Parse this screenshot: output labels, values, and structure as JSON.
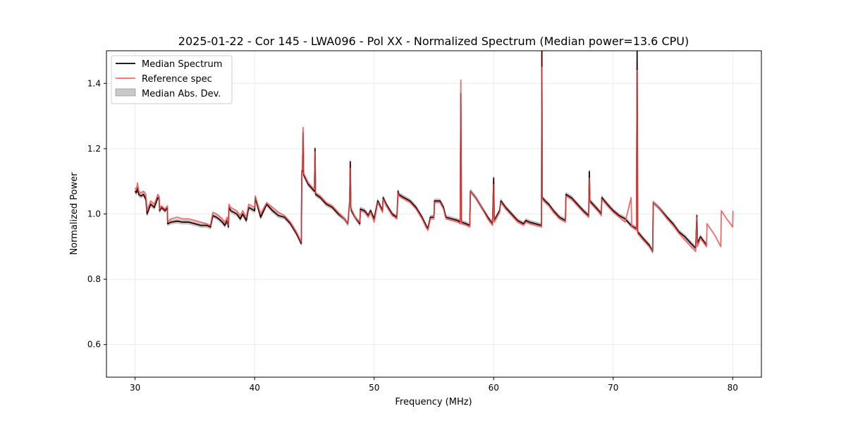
{
  "chart_data": {
    "type": "line",
    "title": "2025-01-22 - Cor 145 - LWA096 - Pol XX - Normalized Spectrum (Median power=13.6 CPU)",
    "xlabel": "Frequency (MHz)",
    "ylabel": "Normalized Power",
    "xlim": [
      27.6,
      82.4
    ],
    "ylim": [
      0.5,
      1.5
    ],
    "xticks": [
      30,
      40,
      50,
      60,
      70,
      80
    ],
    "yticks": [
      0.6,
      0.8,
      1.0,
      1.2,
      1.4
    ],
    "xtick_labels": [
      "30",
      "40",
      "50",
      "60",
      "70",
      "80"
    ],
    "ytick_labels": [
      "0.6",
      "0.8",
      "1.0",
      "1.2",
      "1.4"
    ],
    "grid": true,
    "legend_position": "top-left",
    "legend": [
      {
        "label": "Median Spectrum",
        "kind": "line",
        "color": "#000000"
      },
      {
        "label": "Reference spec",
        "kind": "line",
        "color": "#f26a6a"
      },
      {
        "label": "Median Abs. Dev.",
        "kind": "patch",
        "color": "#c8c8c8"
      }
    ],
    "series": [
      {
        "name": "Median Spectrum",
        "color": "#000000",
        "x": [
          30,
          30.1,
          30.2,
          30.3,
          30.5,
          30.7,
          30.9,
          31.0,
          31.3,
          31.6,
          31.9,
          32.0,
          32.05,
          32.2,
          32.5,
          32.7,
          32.72,
          33.0,
          33.5,
          34.0,
          34.5,
          35.0,
          35.5,
          36.0,
          36.3,
          36.5,
          36.8,
          37.0,
          37.3,
          37.5,
          37.7,
          37.8,
          37.85,
          38.0,
          38.5,
          38.8,
          39.0,
          39.3,
          39.5,
          40.0,
          40.05,
          40.5,
          41.0,
          41.5,
          42.0,
          42.5,
          43.0,
          43.5,
          43.9,
          43.95,
          44.0,
          44.05,
          44.1,
          44.5,
          45.0,
          45.05,
          45.1,
          45.5,
          46.0,
          46.5,
          47.0,
          47.5,
          47.8,
          47.95,
          48.0,
          48.05,
          48.1,
          48.4,
          48.8,
          48.85,
          49.2,
          49.5,
          49.7,
          50.0,
          50.3,
          50.7,
          50.75,
          51.0,
          51.5,
          51.9,
          52.0,
          52.05,
          52.5,
          53.0,
          53.5,
          54.0,
          54.4,
          54.5,
          54.7,
          55.0,
          55.05,
          55.5,
          55.8,
          56.0,
          56.5,
          57.0,
          57.2,
          57.25,
          57.3,
          57.7,
          58.0,
          58.05,
          58.5,
          59.0,
          59.5,
          59.9,
          60.0,
          60.05,
          60.5,
          60.6,
          61.0,
          61.5,
          62.0,
          62.5,
          62.7,
          63.0,
          63.5,
          64.0,
          64.03,
          64.06,
          64.3,
          64.6,
          65.0,
          65.5,
          66.0,
          66.05,
          66.5,
          67.0,
          67.5,
          67.95,
          68.0,
          68.05,
          68.3,
          68.8,
          69.0,
          69.05,
          69.5,
          70.0,
          70.5,
          71.0,
          71.5,
          71.95,
          72.0,
          72.05,
          72.5,
          73.0,
          73.3,
          73.35,
          73.8,
          74.5,
          75.0,
          75.5,
          76.0,
          76.5,
          76.9,
          77.0,
          77.05,
          77.3,
          77.8
        ],
        "y": [
          1.07,
          1.065,
          1.08,
          1.06,
          1.055,
          1.06,
          1.045,
          1.0,
          1.03,
          1.02,
          1.05,
          1.05,
          1.01,
          1.02,
          1.01,
          1.02,
          0.97,
          0.975,
          0.978,
          0.975,
          0.975,
          0.97,
          0.965,
          0.965,
          0.96,
          0.995,
          0.99,
          0.985,
          0.975,
          0.965,
          0.98,
          0.96,
          1.02,
          1.01,
          1.0,
          0.985,
          1.0,
          0.98,
          1.02,
          1.01,
          1.05,
          0.99,
          1.03,
          1.01,
          0.995,
          0.99,
          0.97,
          0.94,
          0.91,
          1.13,
          1.13,
          1.25,
          1.12,
          1.09,
          1.07,
          1.2,
          1.06,
          1.05,
          1.03,
          1.02,
          1.0,
          0.985,
          0.97,
          1.04,
          1.16,
          1.02,
          1.01,
          0.99,
          0.97,
          1.015,
          1.01,
          0.995,
          1.01,
          0.985,
          1.04,
          1.01,
          1.05,
          1.03,
          1.0,
          0.99,
          1.07,
          1.06,
          1.05,
          1.04,
          1.02,
          0.99,
          0.96,
          0.955,
          0.99,
          0.99,
          1.04,
          1.04,
          1.02,
          0.99,
          0.985,
          0.98,
          0.975,
          1.37,
          0.975,
          0.97,
          0.965,
          1.07,
          1.05,
          1.02,
          0.99,
          0.97,
          1.11,
          0.98,
          1.01,
          1.04,
          1.02,
          1.0,
          0.98,
          0.97,
          0.98,
          0.975,
          0.97,
          0.965,
          1.5,
          1.05,
          1.04,
          1.03,
          1.01,
          0.99,
          0.98,
          1.06,
          1.05,
          1.03,
          1.01,
          0.995,
          1.13,
          1.04,
          1.03,
          1.01,
          1.0,
          1.05,
          1.03,
          1.01,
          0.995,
          0.985,
          0.965,
          0.955,
          1.5,
          0.945,
          0.925,
          0.905,
          0.885,
          1.035,
          1.02,
          0.99,
          0.97,
          0.945,
          0.93,
          0.91,
          0.895,
          0.995,
          0.91,
          0.93,
          0.905
        ]
      },
      {
        "name": "Reference spec",
        "color": "#f26a6a",
        "x": [
          30,
          30.1,
          30.2,
          30.3,
          30.5,
          30.7,
          30.9,
          31.0,
          31.3,
          31.6,
          31.9,
          32.0,
          32.05,
          32.2,
          32.5,
          32.7,
          32.72,
          33.0,
          33.5,
          34.0,
          34.5,
          35.0,
          35.5,
          36.0,
          36.3,
          36.5,
          36.8,
          37.0,
          37.3,
          37.5,
          37.7,
          37.8,
          37.85,
          38.0,
          38.5,
          38.8,
          39.0,
          39.3,
          39.5,
          40.0,
          40.05,
          40.5,
          41.0,
          41.5,
          42.0,
          42.5,
          43.0,
          43.5,
          43.9,
          43.95,
          44.0,
          44.05,
          44.1,
          44.5,
          45.0,
          45.05,
          45.1,
          45.5,
          46.0,
          46.5,
          47.0,
          47.5,
          47.8,
          47.95,
          48.0,
          48.05,
          48.1,
          48.4,
          48.8,
          48.85,
          49.2,
          49.5,
          49.7,
          50.0,
          50.3,
          50.7,
          50.75,
          51.0,
          51.5,
          51.9,
          52.0,
          52.05,
          52.5,
          53.0,
          53.5,
          54.0,
          54.4,
          54.5,
          54.7,
          55.0,
          55.05,
          55.5,
          55.8,
          56.0,
          56.5,
          57.0,
          57.2,
          57.25,
          57.3,
          57.7,
          58.0,
          58.05,
          58.5,
          59.0,
          59.5,
          59.9,
          60.0,
          60.05,
          60.5,
          60.6,
          61.0,
          61.5,
          62.0,
          62.5,
          62.7,
          63.0,
          63.5,
          64.0,
          64.03,
          64.06,
          64.3,
          64.6,
          65.0,
          65.5,
          66.0,
          66.05,
          66.5,
          67.0,
          67.5,
          67.95,
          68.0,
          68.05,
          68.3,
          68.8,
          69.0,
          69.05,
          69.5,
          70.0,
          70.5,
          71.0,
          71.5,
          71.55,
          71.6,
          71.95,
          72.0,
          72.05,
          72.5,
          73.0,
          73.3,
          73.35,
          73.8,
          74.5,
          75.0,
          75.5,
          76.0,
          76.5,
          76.9,
          77.0,
          77.05,
          77.3,
          77.8,
          77.85,
          78.5,
          79.0,
          79.05,
          79.5,
          80.0,
          80.02
        ],
        "y": [
          1.08,
          1.075,
          1.095,
          1.07,
          1.065,
          1.07,
          1.06,
          1.01,
          1.04,
          1.03,
          1.06,
          1.055,
          1.015,
          1.025,
          1.015,
          1.025,
          0.975,
          0.985,
          0.99,
          0.985,
          0.985,
          0.98,
          0.975,
          0.97,
          0.965,
          1.005,
          1.0,
          0.995,
          0.985,
          0.975,
          0.99,
          0.965,
          1.03,
          1.02,
          1.01,
          0.995,
          1.01,
          0.99,
          1.03,
          1.02,
          1.055,
          1.0,
          1.035,
          1.02,
          1.005,
          0.995,
          0.975,
          0.945,
          0.915,
          1.135,
          1.135,
          1.265,
          1.125,
          1.095,
          1.075,
          1.19,
          1.065,
          1.055,
          1.035,
          1.025,
          1.005,
          0.985,
          0.97,
          1.04,
          1.14,
          1.02,
          1.015,
          0.99,
          0.975,
          1.01,
          1.005,
          0.99,
          1.005,
          0.975,
          1.035,
          1.005,
          1.045,
          1.025,
          0.995,
          0.985,
          1.065,
          1.055,
          1.045,
          1.035,
          1.015,
          0.985,
          0.955,
          0.95,
          0.985,
          0.985,
          1.035,
          1.035,
          1.015,
          0.985,
          0.98,
          0.975,
          0.97,
          1.41,
          0.97,
          0.965,
          0.96,
          1.07,
          1.05,
          1.02,
          0.985,
          0.965,
          1.09,
          0.975,
          1.005,
          1.035,
          1.015,
          0.995,
          0.975,
          0.965,
          0.975,
          0.97,
          0.965,
          0.96,
          1.45,
          1.045,
          1.035,
          1.025,
          1.005,
          0.985,
          0.975,
          1.055,
          1.045,
          1.025,
          1.005,
          0.99,
          1.11,
          1.035,
          1.025,
          1.005,
          0.995,
          1.045,
          1.025,
          1.005,
          0.99,
          0.975,
          1.05,
          0.96,
          0.96,
          0.95,
          1.44,
          0.94,
          0.92,
          0.9,
          0.885,
          1.035,
          1.02,
          0.985,
          0.965,
          0.94,
          0.92,
          0.9,
          0.885,
          0.99,
          0.9,
          0.925,
          0.9,
          0.97,
          0.935,
          0.9,
          1.01,
          0.985,
          0.96,
          1.01
        ]
      }
    ]
  }
}
